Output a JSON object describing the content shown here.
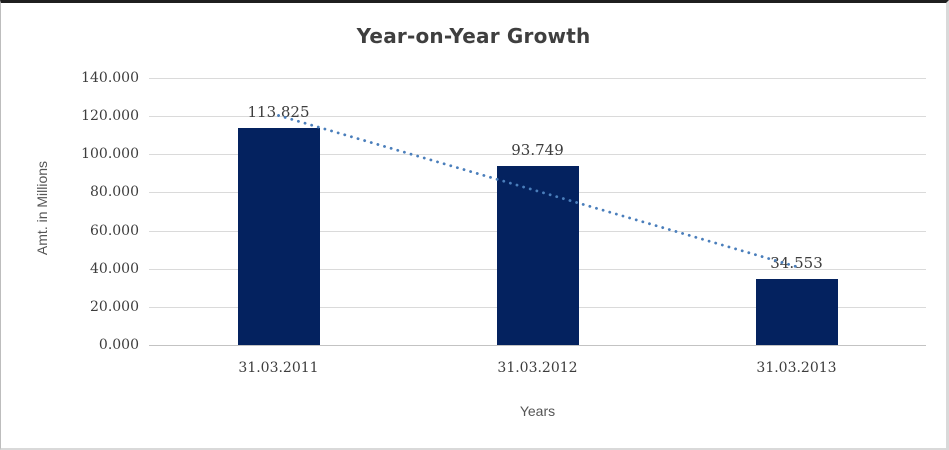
{
  "chart_data": {
    "type": "bar",
    "title": "Year-on-Year Growth",
    "xlabel": "Years",
    "ylabel": "Amt. in Millions",
    "categories": [
      "31.03.2011",
      "31.03.2012",
      "31.03.2013"
    ],
    "values": [
      113.825,
      93.749,
      34.553
    ],
    "value_labels": [
      "113.825",
      "93.749",
      "34.553"
    ],
    "yticks": [
      "140.000",
      "120.000",
      "100.000",
      "80.000",
      "60.000",
      "40.000",
      "20.000",
      "0.000"
    ],
    "ylim": [
      0,
      140
    ],
    "grid": "horizontal",
    "legend_position": "none",
    "bar_color": "#04225f",
    "trendline": {
      "kind": "linear",
      "style": "dotted",
      "color": "#4a7ebb"
    }
  }
}
